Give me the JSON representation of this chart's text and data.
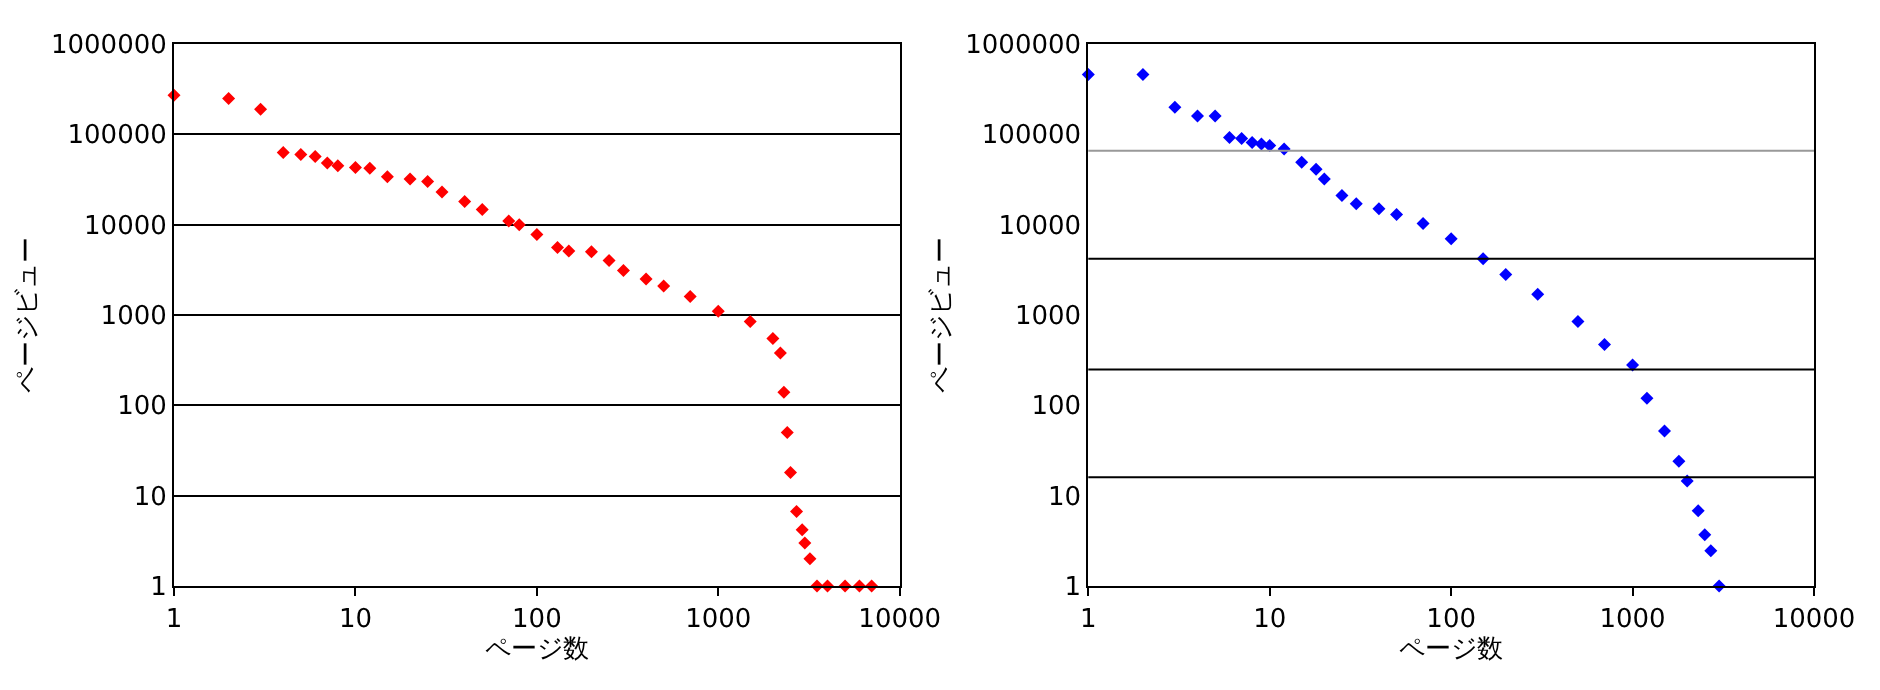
{
  "chart_data": [
    {
      "type": "scatter",
      "xlabel": "ページ数",
      "ylabel": "ページビュー",
      "log": "xy",
      "marker": "diamond",
      "grid": "y",
      "xlim": [
        1,
        10000
      ],
      "xticks": [
        1,
        10,
        100,
        1000,
        10000
      ],
      "ylim": [
        1,
        1000000
      ],
      "yticks": [
        1,
        10,
        100,
        1000,
        10000,
        100000,
        1000000
      ],
      "series": [
        {
          "color": "#ff0000",
          "x": [
            1,
            2,
            3,
            4,
            5,
            6,
            7,
            8,
            10,
            12,
            15,
            20,
            25,
            30,
            40,
            50,
            70,
            80,
            100,
            130,
            150,
            200,
            250,
            300,
            400,
            500,
            700,
            1000,
            1500,
            2000,
            2200,
            2300,
            2400,
            2500,
            2700,
            2900,
            3000,
            3200,
            3500,
            4000,
            5000,
            6000,
            7000
          ],
          "values": [
            270000,
            250000,
            190000,
            63000,
            60000,
            57000,
            48000,
            45000,
            43000,
            42000,
            34000,
            32000,
            30000,
            23000,
            18000,
            14700,
            11000,
            10000,
            7800,
            5600,
            5100,
            5000,
            4000,
            3100,
            2500,
            2100,
            1600,
            1100,
            850,
            550,
            380,
            140,
            50,
            18,
            6.7,
            4.2,
            3,
            2,
            1,
            1,
            1,
            1,
            1
          ]
        }
      ]
    },
    {
      "type": "scatter",
      "xlabel": "ページ数",
      "ylabel": "ページビュー",
      "log": "xy",
      "marker": "diamond",
      "xlim": [
        1,
        10000
      ],
      "xticks": [
        1,
        10,
        100,
        1000,
        10000
      ],
      "ylim": [
        1,
        1000000
      ],
      "yticks": [
        1,
        10,
        100,
        1000,
        10000,
        100000,
        1000000
      ],
      "ref_lines": [
        {
          "axis": "y",
          "value": 16,
          "color": "#000000"
        },
        {
          "axis": "y",
          "value": 250,
          "color": "#000000"
        },
        {
          "axis": "y",
          "value": 4200,
          "color": "#000000"
        },
        {
          "axis": "y",
          "value": 66000,
          "color": "#999999"
        }
      ],
      "series": [
        {
          "color": "#0000ff",
          "x": [
            1,
            2,
            3,
            4,
            5,
            6,
            7,
            8,
            9,
            10,
            12,
            15,
            18,
            20,
            25,
            30,
            40,
            50,
            70,
            100,
            150,
            200,
            300,
            500,
            700,
            1000,
            1200,
            1500,
            1800,
            2000,
            2300,
            2500,
            2700,
            3000
          ],
          "values": [
            460000,
            460000,
            200000,
            160000,
            160000,
            92000,
            90000,
            81000,
            78000,
            75000,
            69000,
            49000,
            41000,
            32000,
            21000,
            17000,
            15000,
            13000,
            10300,
            7000,
            4200,
            2800,
            1700,
            850,
            470,
            280,
            120,
            52,
            24,
            14.5,
            6.8,
            3.7,
            2.45,
            1
          ]
        }
      ]
    }
  ]
}
